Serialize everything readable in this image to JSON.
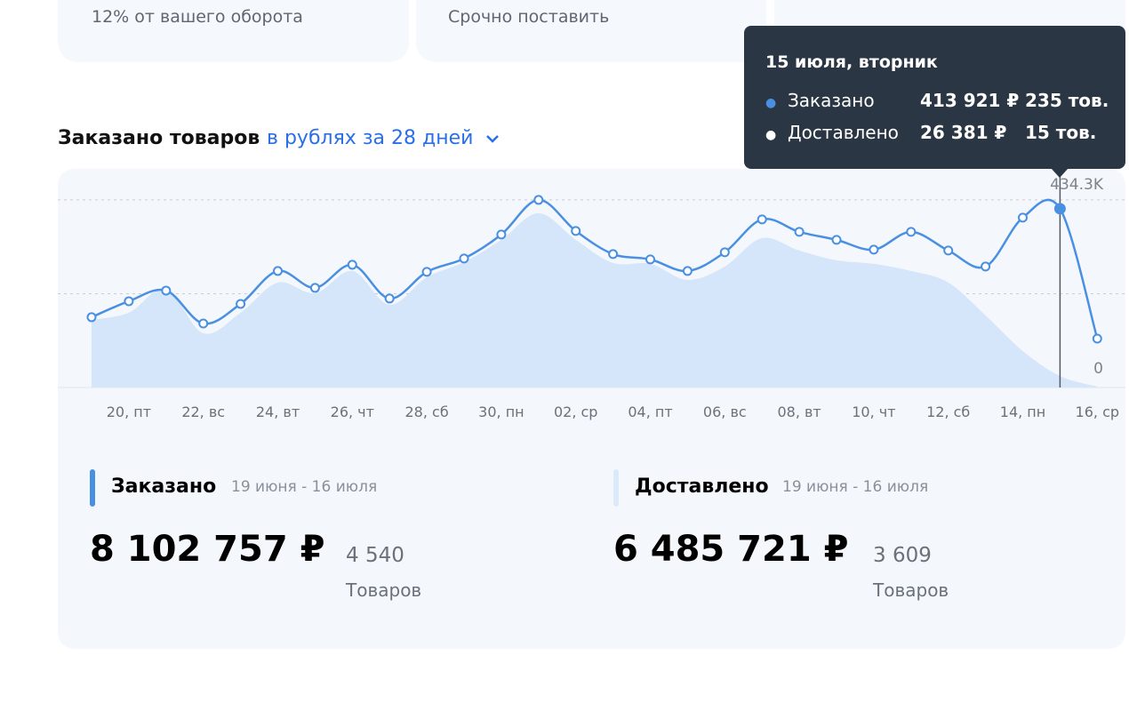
{
  "top_cards": [
    "12% от вашего оборота",
    "Срочно поставить"
  ],
  "chart_data": {
    "type": "line",
    "title": "Заказано товаров",
    "selector": "в рублях за 28 дней",
    "categories": [
      null,
      "20, пт",
      null,
      "22, вс",
      null,
      "24, вт",
      null,
      "26, чт",
      null,
      "28, сб",
      null,
      "30, пн",
      null,
      "02, ср",
      null,
      "04, пт",
      null,
      "06, вс",
      null,
      "08, вт",
      null,
      "10, чт",
      null,
      "12, сб",
      null,
      "14, пн",
      null,
      "16, ср"
    ],
    "series": [
      {
        "name": "Заказано",
        "color": "#4a90e2",
        "values": [
          162700,
          199700,
          224400,
          148200,
          193500,
          269700,
          230600,
          284100,
          205900,
          267700,
          298600,
          354100,
          434300,
          362400,
          308800,
          296500,
          269700,
          313000,
          389200,
          360300,
          341800,
          319100,
          360300,
          317100,
          280000,
          393300,
          413921,
          113200
        ]
      },
      {
        "name": "Доставлено",
        "color": "#d5e5fa",
        "values": [
          156500,
          173000,
          228500,
          125600,
          173000,
          243000,
          218300,
          269700,
          191500,
          255300,
          290300,
          341800,
          403600,
          341800,
          288300,
          286200,
          249100,
          280000,
          345900,
          317100,
          294400,
          286200,
          269700,
          243000,
          166800,
          84400,
          26381,
          2000
        ]
      }
    ],
    "ylim": [
      0,
      500000
    ],
    "yticks": [
      {
        "value": 0,
        "label": "0"
      },
      {
        "value": 434300,
        "label": "434.3K"
      }
    ],
    "grid": true,
    "tooltip": {
      "title": "15 июля, вторник",
      "index": 26,
      "rows": [
        [
          "413 921 ₽",
          "235 тов."
        ],
        [
          "26 381 ₽",
          "15 тов."
        ]
      ]
    }
  },
  "summary": [
    {
      "name": "Заказано",
      "period": "19 июня - 16 июля",
      "amount": "8 102 757 ₽",
      "count": "4 540",
      "unit": "Товаров"
    },
    {
      "name": "Доставлено",
      "period": "19 июня - 16 июля",
      "amount": "6 485 721 ₽",
      "count": "3 609",
      "unit": "Товаров"
    }
  ]
}
